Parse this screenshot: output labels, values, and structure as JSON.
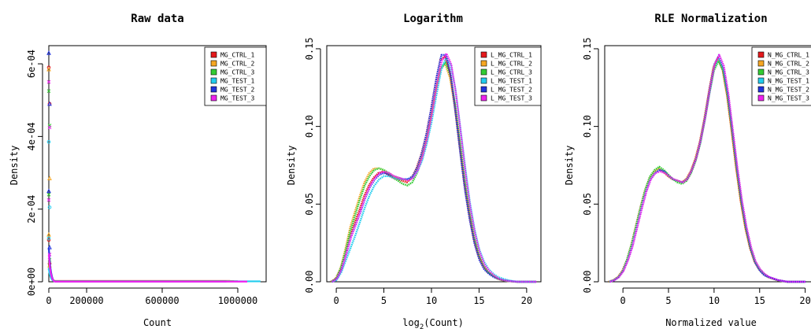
{
  "figure": {
    "panel_titles": [
      "Raw data",
      "Logarithm",
      "RLE Normalization"
    ]
  },
  "chart_data": [
    {
      "type": "scatter",
      "title": "Raw data",
      "xlabel": "Count",
      "ylabel": "Density",
      "xlim": [
        0,
        1150000
      ],
      "ylim": [
        0,
        0.00065
      ],
      "xticks": [
        0,
        200000,
        600000,
        1000000
      ],
      "xtick_labels": [
        "0",
        "200000",
        "600000",
        "1000000"
      ],
      "yticks": [
        0,
        0.0002,
        0.0004,
        0.0006
      ],
      "ytick_labels": [
        "0e+00",
        "2e-04",
        "4e-04",
        "6e-04"
      ],
      "legend_position": "top-right",
      "series": [
        {
          "name": "MG_CTRL_1",
          "color": "#e41a1c",
          "values": [
            0.00059,
            0.00049,
            0.000115,
            5e-05
          ],
          "x_end": 960000
        },
        {
          "name": "MG_CTRL_2",
          "color": "#f5a623",
          "values": [
            0.000585,
            0.000285,
            0.00013,
            4.5e-05
          ],
          "x_end": 980000
        },
        {
          "name": "MG_CTRL_3",
          "color": "#33cc33",
          "values": [
            0.000525,
            0.00043,
            0.00024,
            6e-05
          ],
          "x_end": 1000000
        },
        {
          "name": "MG_TEST_1",
          "color": "#22ccee",
          "values": [
            0.000385,
            0.000205,
            0.00012,
            3.5e-05
          ],
          "x_end": 1120000
        },
        {
          "name": "MG_TEST_2",
          "color": "#2233dd",
          "values": [
            0.00063,
            0.00049,
            0.00025,
            9.5e-05
          ],
          "x_end": 940000
        },
        {
          "name": "MG_TEST_3",
          "color": "#ee22ee",
          "values": [
            0.00055,
            0.000425,
            0.000225,
            7.5e-05
          ],
          "x_end": 1050000
        }
      ]
    },
    {
      "type": "line",
      "title": "Logarithm",
      "xlabel": "log",
      "xlabel_sub": "2",
      "xlabel_tail": "(Count)",
      "ylabel": "Density",
      "xlim": [
        -1,
        21.5
      ],
      "ylim": [
        0,
        0.152
      ],
      "xticks": [
        0,
        5,
        10,
        15,
        20
      ],
      "xtick_labels": [
        "0",
        "5",
        "10",
        "15",
        "20"
      ],
      "yticks": [
        0,
        0.05,
        0.1,
        0.15
      ],
      "ytick_labels": [
        "0.00",
        "0.05",
        "0.10",
        "0.15"
      ],
      "legend_position": "top-right",
      "x": [
        -0.5,
        0,
        0.5,
        1,
        1.5,
        2,
        2.5,
        3,
        3.5,
        4,
        4.5,
        5,
        5.5,
        6,
        6.5,
        7,
        7.5,
        8,
        8.5,
        9,
        9.5,
        10,
        10.5,
        11,
        11.5,
        12,
        12.5,
        13,
        13.5,
        14,
        14.5,
        15,
        15.5,
        16,
        16.5,
        17,
        17.5,
        18,
        19,
        20,
        21
      ],
      "series": [
        {
          "name": "L_MG_CTRL_1",
          "color": "#e41a1c",
          "values": [
            0,
            0.002,
            0.008,
            0.018,
            0.03,
            0.038,
            0.046,
            0.055,
            0.062,
            0.067,
            0.07,
            0.071,
            0.069,
            0.067,
            0.066,
            0.065,
            0.064,
            0.067,
            0.073,
            0.082,
            0.094,
            0.11,
            0.128,
            0.143,
            0.145,
            0.135,
            0.115,
            0.09,
            0.065,
            0.045,
            0.028,
            0.017,
            0.01,
            0.006,
            0.004,
            0.002,
            0.001,
            0.0005,
            0,
            0,
            0
          ]
        },
        {
          "name": "L_MG_CTRL_2",
          "color": "#f5a623",
          "values": [
            0,
            0.002,
            0.009,
            0.021,
            0.035,
            0.045,
            0.055,
            0.064,
            0.07,
            0.073,
            0.073,
            0.072,
            0.07,
            0.068,
            0.067,
            0.066,
            0.065,
            0.067,
            0.072,
            0.08,
            0.091,
            0.106,
            0.123,
            0.137,
            0.14,
            0.131,
            0.112,
            0.088,
            0.064,
            0.044,
            0.028,
            0.017,
            0.01,
            0.006,
            0.004,
            0.002,
            0.001,
            0.0005,
            0,
            0,
            0
          ]
        },
        {
          "name": "L_MG_CTRL_3",
          "color": "#33cc33",
          "values": [
            0,
            0.002,
            0.009,
            0.02,
            0.033,
            0.043,
            0.053,
            0.062,
            0.068,
            0.072,
            0.073,
            0.072,
            0.07,
            0.067,
            0.065,
            0.063,
            0.062,
            0.064,
            0.07,
            0.079,
            0.09,
            0.106,
            0.124,
            0.138,
            0.141,
            0.133,
            0.114,
            0.09,
            0.066,
            0.046,
            0.029,
            0.018,
            0.011,
            0.006,
            0.004,
            0.002,
            0.001,
            0.0005,
            0,
            0,
            0
          ]
        },
        {
          "name": "L_MG_TEST_1",
          "color": "#22ccee",
          "values": [
            0,
            0.001,
            0.006,
            0.014,
            0.022,
            0.03,
            0.039,
            0.048,
            0.056,
            0.062,
            0.066,
            0.068,
            0.068,
            0.067,
            0.066,
            0.066,
            0.066,
            0.067,
            0.071,
            0.078,
            0.089,
            0.103,
            0.12,
            0.136,
            0.144,
            0.14,
            0.124,
            0.1,
            0.075,
            0.052,
            0.034,
            0.021,
            0.013,
            0.008,
            0.005,
            0.003,
            0.002,
            0.001,
            0,
            0,
            0
          ]
        },
        {
          "name": "L_MG_TEST_2",
          "color": "#2233dd",
          "values": [
            0,
            0.002,
            0.008,
            0.018,
            0.029,
            0.037,
            0.045,
            0.054,
            0.061,
            0.066,
            0.069,
            0.07,
            0.069,
            0.068,
            0.067,
            0.066,
            0.066,
            0.068,
            0.074,
            0.084,
            0.097,
            0.114,
            0.132,
            0.146,
            0.146,
            0.132,
            0.108,
            0.082,
            0.058,
            0.039,
            0.024,
            0.014,
            0.008,
            0.005,
            0.003,
            0.002,
            0.001,
            0.0005,
            0,
            0,
            0
          ]
        },
        {
          "name": "L_MG_TEST_3",
          "color": "#ee22ee",
          "values": [
            0,
            0.002,
            0.008,
            0.018,
            0.029,
            0.037,
            0.046,
            0.055,
            0.062,
            0.067,
            0.07,
            0.071,
            0.07,
            0.068,
            0.067,
            0.066,
            0.065,
            0.067,
            0.072,
            0.081,
            0.093,
            0.109,
            0.127,
            0.142,
            0.147,
            0.14,
            0.121,
            0.096,
            0.07,
            0.048,
            0.031,
            0.019,
            0.011,
            0.007,
            0.004,
            0.002,
            0.001,
            0.0005,
            0,
            0,
            0
          ]
        }
      ]
    },
    {
      "type": "line",
      "title": "RLE Normalization",
      "xlabel": "Normalized value",
      "ylabel": "Density",
      "xlim": [
        -2,
        21.5
      ],
      "ylim": [
        0,
        0.152
      ],
      "xticks": [
        0,
        5,
        10,
        15,
        20
      ],
      "xtick_labels": [
        "0",
        "5",
        "10",
        "15",
        "20"
      ],
      "yticks": [
        0,
        0.05,
        0.1,
        0.15
      ],
      "ytick_labels": [
        "0.00",
        "0.05",
        "0.10",
        "0.15"
      ],
      "legend_position": "top-right",
      "x": [
        -1.5,
        -1,
        -0.5,
        0,
        0.5,
        1,
        1.5,
        2,
        2.5,
        3,
        3.5,
        4,
        4.5,
        5,
        5.5,
        6,
        6.5,
        7,
        7.5,
        8,
        8.5,
        9,
        9.5,
        10,
        10.5,
        11,
        11.5,
        12,
        12.5,
        13,
        13.5,
        14,
        14.5,
        15,
        15.5,
        16,
        16.5,
        17,
        17.5,
        18,
        19,
        20
      ],
      "series": [
        {
          "name": "N_MG_CTRL_1",
          "color": "#e41a1c",
          "values": [
            0,
            0.001,
            0.003,
            0.007,
            0.014,
            0.024,
            0.036,
            0.048,
            0.059,
            0.067,
            0.071,
            0.073,
            0.071,
            0.068,
            0.066,
            0.065,
            0.064,
            0.066,
            0.071,
            0.079,
            0.09,
            0.105,
            0.122,
            0.138,
            0.144,
            0.137,
            0.12,
            0.097,
            0.073,
            0.052,
            0.035,
            0.022,
            0.013,
            0.008,
            0.005,
            0.003,
            0.002,
            0.001,
            0.0005,
            0,
            0,
            0
          ]
        },
        {
          "name": "N_MG_CTRL_2",
          "color": "#f5a623",
          "values": [
            0,
            0.001,
            0.003,
            0.007,
            0.014,
            0.024,
            0.036,
            0.048,
            0.059,
            0.067,
            0.071,
            0.073,
            0.071,
            0.068,
            0.066,
            0.065,
            0.064,
            0.066,
            0.071,
            0.079,
            0.09,
            0.105,
            0.122,
            0.138,
            0.143,
            0.136,
            0.119,
            0.096,
            0.072,
            0.051,
            0.034,
            0.022,
            0.013,
            0.008,
            0.005,
            0.003,
            0.002,
            0.001,
            0.0005,
            0,
            0,
            0
          ]
        },
        {
          "name": "N_MG_CTRL_3",
          "color": "#33cc33",
          "values": [
            0,
            0.001,
            0.003,
            0.007,
            0.015,
            0.025,
            0.037,
            0.049,
            0.06,
            0.068,
            0.072,
            0.074,
            0.072,
            0.069,
            0.066,
            0.064,
            0.063,
            0.065,
            0.07,
            0.078,
            0.089,
            0.104,
            0.121,
            0.136,
            0.142,
            0.136,
            0.12,
            0.097,
            0.073,
            0.052,
            0.035,
            0.022,
            0.013,
            0.008,
            0.005,
            0.003,
            0.002,
            0.001,
            0.0005,
            0,
            0,
            0
          ]
        },
        {
          "name": "N_MG_TEST_1",
          "color": "#22ccee",
          "values": [
            0,
            0.001,
            0.003,
            0.007,
            0.014,
            0.023,
            0.035,
            0.047,
            0.058,
            0.066,
            0.07,
            0.072,
            0.071,
            0.068,
            0.066,
            0.065,
            0.064,
            0.066,
            0.071,
            0.079,
            0.09,
            0.105,
            0.122,
            0.138,
            0.144,
            0.137,
            0.12,
            0.097,
            0.073,
            0.052,
            0.035,
            0.022,
            0.013,
            0.008,
            0.005,
            0.003,
            0.002,
            0.001,
            0.0005,
            0,
            0,
            0
          ]
        },
        {
          "name": "N_MG_TEST_2",
          "color": "#2233dd",
          "values": [
            0,
            0.001,
            0.003,
            0.007,
            0.014,
            0.023,
            0.035,
            0.047,
            0.058,
            0.066,
            0.07,
            0.072,
            0.071,
            0.068,
            0.066,
            0.065,
            0.064,
            0.066,
            0.072,
            0.08,
            0.092,
            0.107,
            0.125,
            0.14,
            0.146,
            0.138,
            0.12,
            0.096,
            0.072,
            0.051,
            0.034,
            0.021,
            0.012,
            0.007,
            0.004,
            0.003,
            0.002,
            0.001,
            0.0005,
            0,
            0,
            0
          ]
        },
        {
          "name": "N_MG_TEST_3",
          "color": "#ee22ee",
          "values": [
            0,
            0.001,
            0.003,
            0.007,
            0.014,
            0.023,
            0.035,
            0.047,
            0.058,
            0.066,
            0.07,
            0.071,
            0.07,
            0.068,
            0.066,
            0.065,
            0.064,
            0.066,
            0.072,
            0.08,
            0.092,
            0.107,
            0.125,
            0.14,
            0.146,
            0.139,
            0.121,
            0.097,
            0.073,
            0.052,
            0.035,
            0.022,
            0.013,
            0.008,
            0.005,
            0.003,
            0.002,
            0.001,
            0.0005,
            0,
            0,
            0
          ]
        }
      ]
    }
  ]
}
